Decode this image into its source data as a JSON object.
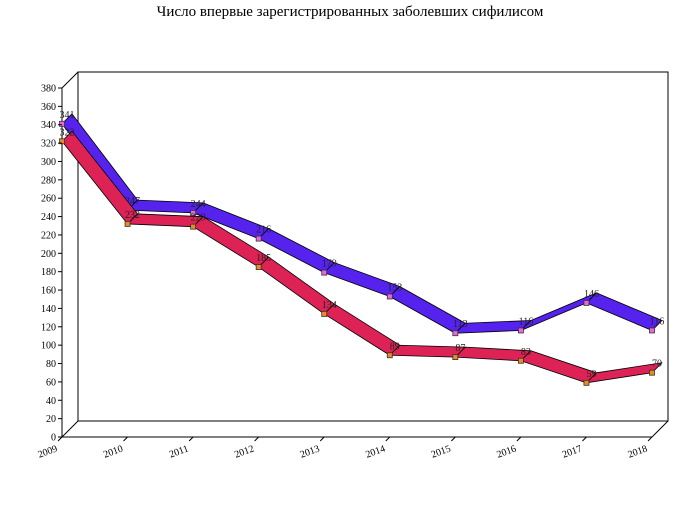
{
  "chart_data": {
    "type": "line",
    "title": "Число впервые зарегистрированных заболевших сифилисом",
    "xlabel": "",
    "ylabel": "",
    "x": [
      "2009",
      "2010",
      "2011",
      "2012",
      "2013",
      "2014",
      "2015",
      "2016",
      "2017",
      "2018"
    ],
    "ylim": [
      0,
      380
    ],
    "ytick_step": 20,
    "grid": false,
    "legend": "none",
    "series": [
      {
        "values": [
          341,
          247,
          244,
          216,
          179,
          153,
          113,
          116,
          146,
          116
        ],
        "color": "#5522ee",
        "marker_color": "#ee66dd"
      },
      {
        "values": [
          322,
          232,
          229,
          185,
          134,
          89,
          87,
          83,
          59,
          70
        ],
        "color": "#dd2255",
        "marker_color": "#ee8822"
      }
    ]
  }
}
